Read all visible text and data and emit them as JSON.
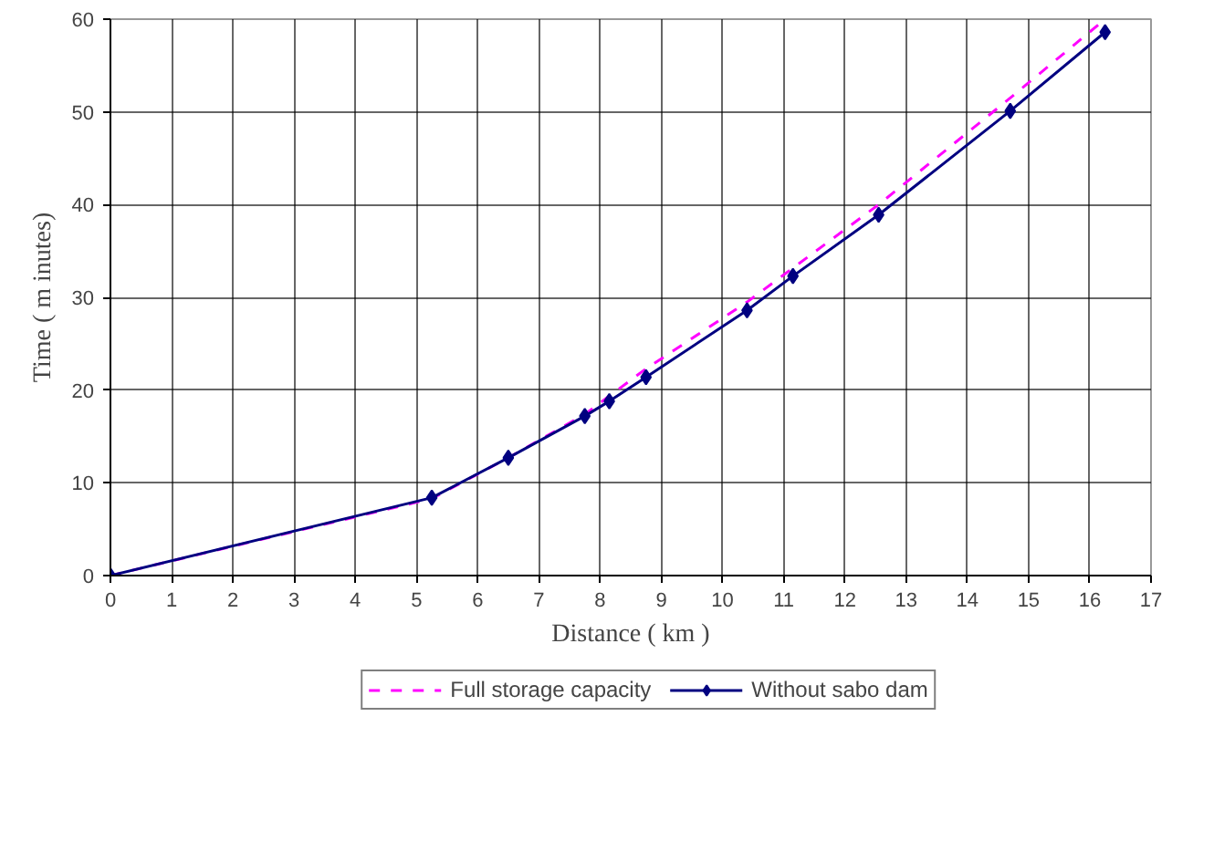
{
  "chart_data": {
    "type": "line",
    "xlabel": "Distance ( km )",
    "ylabel": "Time ( m inutes)",
    "xlim": [
      0,
      17
    ],
    "ylim": [
      0,
      60
    ],
    "xticks": [
      0,
      1,
      2,
      3,
      4,
      5,
      6,
      7,
      8,
      9,
      10,
      11,
      12,
      13,
      14,
      15,
      16,
      17
    ],
    "yticks": [
      0,
      10,
      20,
      30,
      40,
      50,
      60
    ],
    "grid": true,
    "legend": "bottom",
    "series": [
      {
        "name": "Full storage capacity",
        "color": "#ff00ff",
        "line_style": "dashed",
        "marker": "none",
        "x": [
          0,
          5.25,
          6.5,
          7.75,
          8.75,
          10.4,
          12.55,
          14.7,
          16.25
        ],
        "values": [
          0,
          8.3,
          12.7,
          17.4,
          22.3,
          29.5,
          40,
          51.5,
          60
        ]
      },
      {
        "name": "Without sabo dam",
        "color": "#000080",
        "line_style": "solid",
        "marker": "diamond",
        "x": [
          0,
          5.25,
          6.5,
          7.75,
          8.15,
          8.75,
          10.4,
          11.15,
          12.55,
          14.7,
          16.25
        ],
        "values": [
          0,
          8.4,
          12.7,
          17.2,
          18.8,
          21.4,
          28.6,
          32.3,
          38.9,
          50.1,
          58.6
        ]
      }
    ]
  }
}
